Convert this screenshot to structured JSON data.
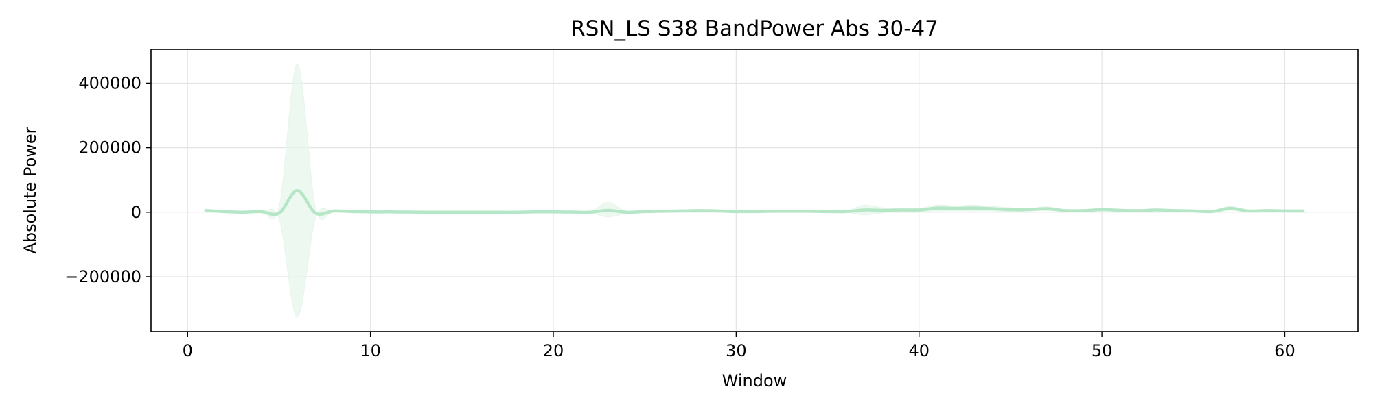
{
  "chart_data": {
    "type": "line",
    "title": "RSN_LS S38 BandPower Abs 30-47",
    "xlabel": "Window",
    "ylabel": "Absolute Power",
    "xlim": [
      -2,
      64
    ],
    "ylim": [
      -370000,
      505000
    ],
    "x_ticks": [
      0,
      10,
      20,
      30,
      40,
      50,
      60
    ],
    "x_tick_labels": [
      "0",
      "10",
      "20",
      "30",
      "40",
      "50",
      "60"
    ],
    "y_ticks": [
      -200000,
      0,
      200000,
      400000
    ],
    "y_tick_labels": [
      "−200000",
      "0",
      "200000",
      "400000"
    ],
    "grid": true,
    "legend": false,
    "colors": {
      "line": "#b5e6c6",
      "band": "#e6f5eb"
    },
    "series": [
      {
        "x": [
          1,
          2,
          3,
          4,
          5,
          6,
          7,
          8,
          9,
          10,
          11,
          12,
          13,
          14,
          15,
          16,
          17,
          18,
          19,
          20,
          21,
          22,
          23,
          24,
          25,
          26,
          27,
          28,
          29,
          30,
          31,
          32,
          33,
          34,
          35,
          36,
          37,
          38,
          39,
          40,
          41,
          42,
          43,
          44,
          45,
          46,
          47,
          48,
          49,
          50,
          51,
          52,
          53,
          54,
          55,
          56,
          57,
          58,
          59,
          60,
          61
        ],
        "y": [
          5000,
          2000,
          0,
          2000,
          -3000,
          67000,
          -3000,
          4000,
          2000,
          1000,
          1000,
          500,
          0,
          0,
          0,
          0,
          0,
          0,
          1000,
          1000,
          500,
          0,
          6000,
          0,
          2000,
          3000,
          4000,
          5000,
          4000,
          2000,
          2000,
          3000,
          3000,
          3000,
          2000,
          2000,
          7000,
          6000,
          7000,
          7000,
          13000,
          12000,
          13000,
          11000,
          8000,
          8000,
          11000,
          5000,
          5000,
          8000,
          6000,
          5000,
          7000,
          5000,
          4000,
          2000,
          12000,
          4000,
          5000,
          4000,
          4000
        ],
        "upper": [
          10000,
          4000,
          2000,
          5000,
          15000,
          460000,
          12000,
          6000,
          3000,
          2000,
          1500,
          1000,
          500,
          500,
          500,
          500,
          500,
          500,
          1500,
          2000,
          1500,
          1000,
          30000,
          3000,
          4000,
          5000,
          6000,
          8000,
          6000,
          4000,
          4000,
          5000,
          5000,
          5000,
          4000,
          4000,
          22000,
          14000,
          12000,
          12000,
          22000,
          20000,
          22000,
          18000,
          14000,
          12000,
          17000,
          8000,
          8000,
          12000,
          9000,
          8000,
          10000,
          8000,
          6000,
          4000,
          18000,
          7000,
          8000,
          7000,
          6000
        ],
        "lower": [
          0,
          0,
          -2000,
          -1000,
          -20000,
          -326000,
          -18000,
          2000,
          1000,
          0,
          500,
          0,
          -500,
          -500,
          -500,
          -500,
          -500,
          -500,
          500,
          0,
          -500,
          -1000,
          -15000,
          -3000,
          0,
          1000,
          2000,
          2000,
          2000,
          0,
          0,
          1000,
          1000,
          1000,
          0,
          0,
          -8000,
          -2000,
          2000,
          2000,
          4000,
          4000,
          4000,
          4000,
          2000,
          4000,
          5000,
          2000,
          2000,
          4000,
          3000,
          2000,
          4000,
          2000,
          2000,
          0,
          6000,
          1000,
          2000,
          1000,
          2000
        ]
      }
    ]
  }
}
